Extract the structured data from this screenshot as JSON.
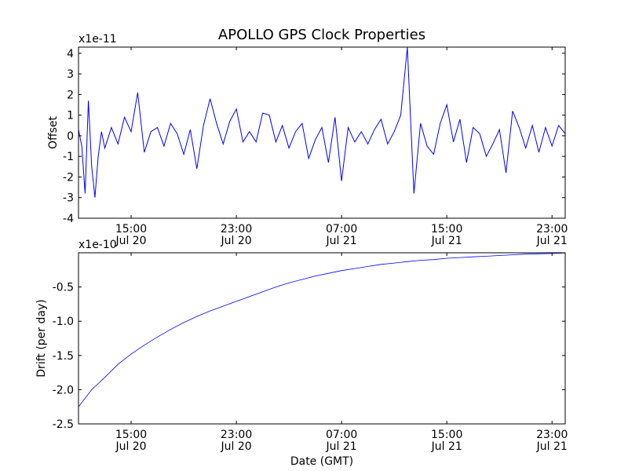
{
  "chart_data": [
    {
      "type": "line",
      "title": "APOLLO GPS Clock Properties",
      "ylabel": "Offset",
      "xlabel": "",
      "yscale_label": "x1e-11",
      "ylim": [
        -4,
        4.3
      ],
      "yticks": [
        "-4",
        "-3",
        "-2",
        "-1",
        "0",
        "1",
        "2",
        "3",
        "4"
      ],
      "ytick_values": [
        -4,
        -3,
        -2,
        -1,
        0,
        1,
        2,
        3,
        4
      ],
      "xlim": [
        "2009-07-20T11:00",
        "2009-07-22T00:00"
      ],
      "xticks": [
        {
          "at": "2009-07-20T15:00",
          "line1": "15:00",
          "line2": "Jul 20"
        },
        {
          "at": "2009-07-20T23:00",
          "line1": "23:00",
          "line2": "Jul 20"
        },
        {
          "at": "2009-07-21T07:00",
          "line1": "07:00",
          "line2": "Jul 21"
        },
        {
          "at": "2009-07-21T15:00",
          "line1": "15:00",
          "line2": "Jul 21"
        },
        {
          "at": "2009-07-21T23:00",
          "line1": "23:00",
          "line2": "Jul 21"
        }
      ],
      "grid": false,
      "color": "#0000ff",
      "series": [
        {
          "x": [
            "2009-07-20T11:00",
            "2009-07-20T11:15",
            "2009-07-20T11:30",
            "2009-07-20T11:45",
            "2009-07-20T12:00",
            "2009-07-20T12:15",
            "2009-07-20T12:30",
            "2009-07-20T12:45",
            "2009-07-20T13:00",
            "2009-07-20T13:30",
            "2009-07-20T14:00",
            "2009-07-20T14:30",
            "2009-07-20T15:00",
            "2009-07-20T15:30",
            "2009-07-20T16:00",
            "2009-07-20T16:30",
            "2009-07-20T17:00",
            "2009-07-20T17:30",
            "2009-07-20T18:00",
            "2009-07-20T18:30",
            "2009-07-20T19:00",
            "2009-07-20T19:30",
            "2009-07-20T20:00",
            "2009-07-20T20:30",
            "2009-07-20T21:00",
            "2009-07-20T21:30",
            "2009-07-20T22:00",
            "2009-07-20T22:30",
            "2009-07-20T23:00",
            "2009-07-20T23:30",
            "2009-07-21T00:00",
            "2009-07-21T00:30",
            "2009-07-21T01:00",
            "2009-07-21T01:30",
            "2009-07-21T02:00",
            "2009-07-21T02:30",
            "2009-07-21T03:00",
            "2009-07-21T03:30",
            "2009-07-21T04:00",
            "2009-07-21T04:30",
            "2009-07-21T05:00",
            "2009-07-21T05:30",
            "2009-07-21T06:00",
            "2009-07-21T06:30",
            "2009-07-21T07:00",
            "2009-07-21T07:30",
            "2009-07-21T08:00",
            "2009-07-21T08:30",
            "2009-07-21T09:00",
            "2009-07-21T09:30",
            "2009-07-21T10:00",
            "2009-07-21T10:30",
            "2009-07-21T11:00",
            "2009-07-21T11:30",
            "2009-07-21T12:00",
            "2009-07-21T12:30",
            "2009-07-21T13:00",
            "2009-07-21T13:30",
            "2009-07-21T14:00",
            "2009-07-21T14:30",
            "2009-07-21T15:00",
            "2009-07-21T15:30",
            "2009-07-21T16:00",
            "2009-07-21T16:30",
            "2009-07-21T17:00",
            "2009-07-21T17:30",
            "2009-07-21T18:00",
            "2009-07-21T18:30",
            "2009-07-21T19:00",
            "2009-07-21T19:30",
            "2009-07-21T20:00",
            "2009-07-21T20:30",
            "2009-07-21T21:00",
            "2009-07-21T21:30",
            "2009-07-21T22:00",
            "2009-07-21T22:30",
            "2009-07-21T23:00",
            "2009-07-21T23:30",
            "2009-07-22T00:00"
          ],
          "y": [
            0.3,
            -0.5,
            -2.8,
            1.7,
            -1.5,
            -3.0,
            -1.0,
            0.2,
            -0.6,
            0.4,
            -0.4,
            0.9,
            0.2,
            2.1,
            -0.8,
            0.2,
            0.4,
            -0.5,
            0.6,
            0.1,
            -0.9,
            0.3,
            -1.6,
            0.5,
            1.8,
            0.6,
            -0.4,
            0.7,
            1.3,
            -0.3,
            0.2,
            -0.3,
            1.1,
            1.0,
            -0.3,
            0.5,
            -0.6,
            0.2,
            0.6,
            -1.1,
            -0.2,
            0.4,
            -1.3,
            0.9,
            -2.2,
            0.4,
            -0.3,
            0.2,
            -0.4,
            0.3,
            0.8,
            -0.4,
            0.2,
            1.0,
            4.3,
            -2.8,
            0.6,
            -0.5,
            -0.9,
            0.6,
            1.5,
            -0.3,
            0.8,
            -1.3,
            0.4,
            0.1,
            -1.0,
            -0.4,
            0.3,
            -1.8,
            1.2,
            0.4,
            -0.6,
            0.5,
            -0.8,
            0.4,
            -0.5,
            0.5,
            0.1
          ]
        }
      ]
    },
    {
      "type": "line",
      "title": "",
      "ylabel": "Drift (per day)",
      "xlabel": "Date (GMT)",
      "yscale_label": "x1e-10",
      "ylim": [
        -2.5,
        0.0
      ],
      "yticks": [
        "-2.5",
        "-2.0",
        "-1.5",
        "-1.0",
        "-0.5"
      ],
      "ytick_values": [
        -2.5,
        -2.0,
        -1.5,
        -1.0,
        -0.5
      ],
      "xlim": [
        "2009-07-20T11:00",
        "2009-07-22T00:00"
      ],
      "xticks": [
        {
          "at": "2009-07-20T15:00",
          "line1": "15:00",
          "line2": "Jul 20"
        },
        {
          "at": "2009-07-20T23:00",
          "line1": "23:00",
          "line2": "Jul 20"
        },
        {
          "at": "2009-07-21T07:00",
          "line1": "07:00",
          "line2": "Jul 21"
        },
        {
          "at": "2009-07-21T15:00",
          "line1": "15:00",
          "line2": "Jul 21"
        },
        {
          "at": "2009-07-21T23:00",
          "line1": "23:00",
          "line2": "Jul 21"
        }
      ],
      "grid": false,
      "color": "#0000ff",
      "series": [
        {
          "x": [
            "2009-07-20T11:00",
            "2009-07-20T12:00",
            "2009-07-20T13:00",
            "2009-07-20T14:00",
            "2009-07-20T15:00",
            "2009-07-20T16:00",
            "2009-07-20T17:00",
            "2009-07-20T18:00",
            "2009-07-20T19:00",
            "2009-07-20T20:00",
            "2009-07-20T21:00",
            "2009-07-20T22:00",
            "2009-07-20T23:00",
            "2009-07-21T00:00",
            "2009-07-21T01:00",
            "2009-07-21T02:00",
            "2009-07-21T03:00",
            "2009-07-21T04:00",
            "2009-07-21T05:00",
            "2009-07-21T06:00",
            "2009-07-21T07:00",
            "2009-07-21T08:00",
            "2009-07-21T09:00",
            "2009-07-21T10:00",
            "2009-07-21T11:00",
            "2009-07-21T12:00",
            "2009-07-21T13:00",
            "2009-07-21T14:00",
            "2009-07-21T15:00",
            "2009-07-21T16:00",
            "2009-07-21T17:00",
            "2009-07-21T18:00",
            "2009-07-21T19:00",
            "2009-07-21T20:00",
            "2009-07-21T21:00",
            "2009-07-21T22:00",
            "2009-07-21T23:00",
            "2009-07-22T00:00"
          ],
          "y": [
            -2.25,
            -2.0,
            -1.82,
            -1.63,
            -1.48,
            -1.35,
            -1.23,
            -1.12,
            -1.02,
            -0.93,
            -0.85,
            -0.78,
            -0.71,
            -0.64,
            -0.57,
            -0.5,
            -0.44,
            -0.39,
            -0.34,
            -0.3,
            -0.26,
            -0.23,
            -0.2,
            -0.17,
            -0.15,
            -0.13,
            -0.11,
            -0.1,
            -0.08,
            -0.07,
            -0.06,
            -0.05,
            -0.04,
            -0.03,
            -0.02,
            -0.015,
            -0.01,
            -0.005
          ]
        }
      ]
    }
  ]
}
